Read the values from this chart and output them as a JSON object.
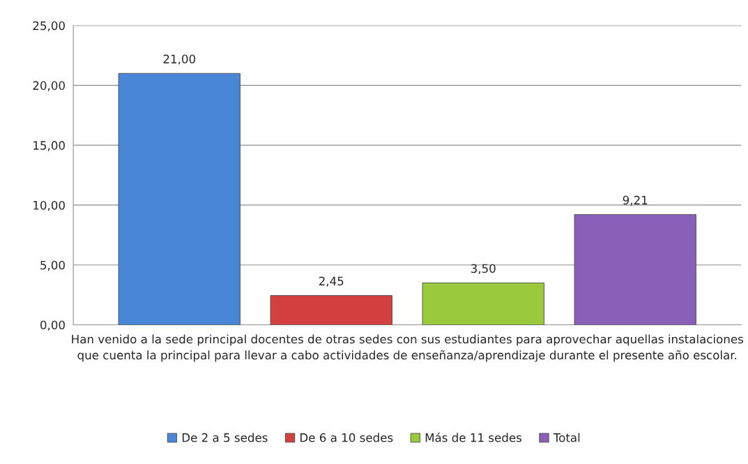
{
  "chart_data": {
    "type": "bar",
    "categories": [
      "Han venido a la sede principal docentes de otras sedes con sus estudiantes para aprovechar aquellas instalaciones que cuenta la principal para llevar a cabo actividades de enseñanza/aprendizaje durante el presente año escolar."
    ],
    "series": [
      {
        "name": "De 2 a 5 sedes",
        "color": "#4a86d8",
        "values": [
          21.0
        ],
        "value_labels": [
          "21,00"
        ]
      },
      {
        "name": "De 6 a 10 sedes",
        "color": "#d43f3f",
        "values": [
          2.45
        ],
        "value_labels": [
          "2,45"
        ]
      },
      {
        "name": "Más de 11 sedes",
        "color": "#9bc93e",
        "values": [
          3.5
        ],
        "value_labels": [
          "3,50"
        ]
      },
      {
        "name": "Total",
        "color": "#8a5fb8",
        "values": [
          9.21
        ],
        "value_labels": [
          "9,21"
        ]
      }
    ],
    "ylim": [
      0,
      25
    ],
    "yticks": [
      {
        "value": 0,
        "label": "0,00"
      },
      {
        "value": 5,
        "label": "5,00"
      },
      {
        "value": 10,
        "label": "10,00"
      },
      {
        "value": 15,
        "label": "15,00"
      },
      {
        "value": 20,
        "label": "20,00"
      },
      {
        "value": 25,
        "label": "25,00"
      }
    ],
    "grid": "y",
    "legend": "bottom"
  }
}
